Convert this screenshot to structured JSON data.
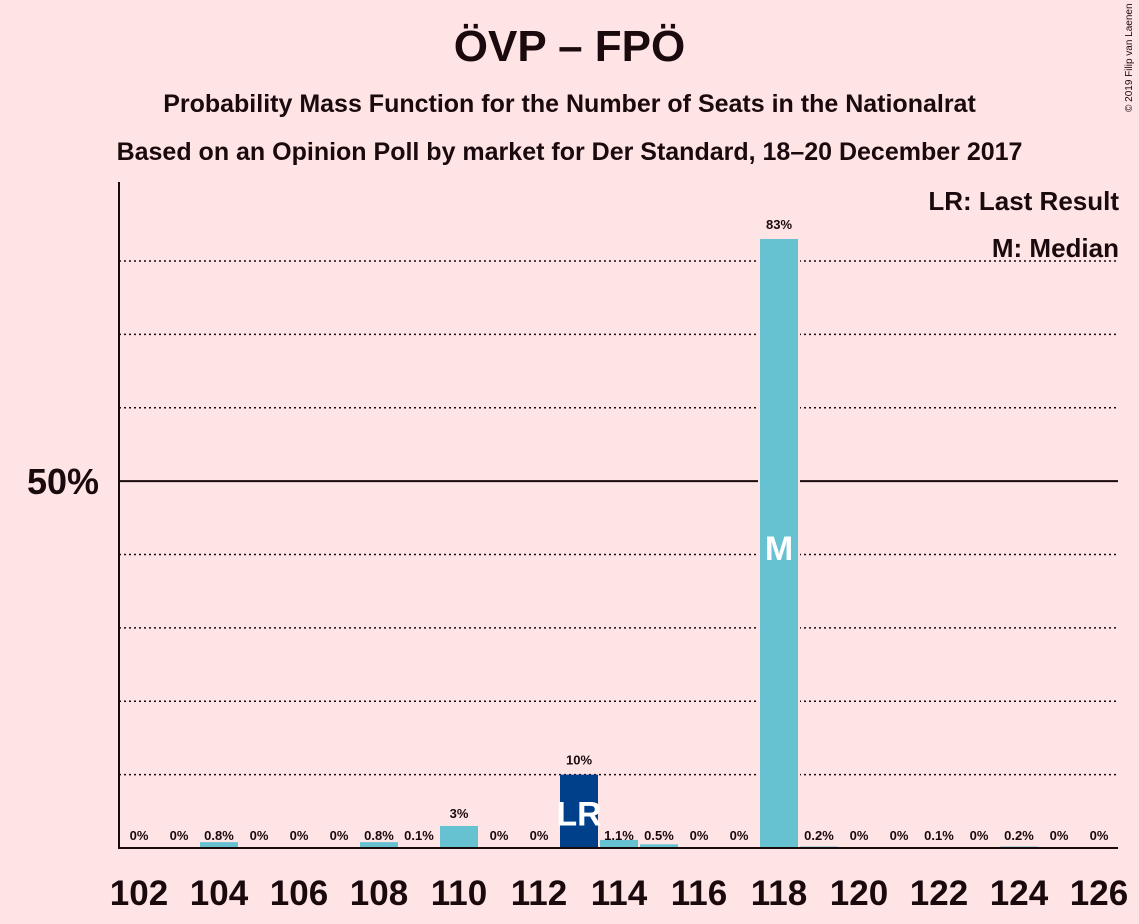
{
  "title": "ÖVP – FPÖ",
  "subtitle_1": "Probability Mass Function for the Number of Seats in the Nationalrat",
  "subtitle_2": "Based on an Opinion Poll by market for Der Standard, 18–20 December 2017",
  "copyright": "© 2019 Filip van Laenen",
  "legend": {
    "last_result": "LR: Last Result",
    "median": "M: Median"
  },
  "colors": {
    "background": "#FFE4E6",
    "bar": "#66C2D0",
    "last_result_bar": "#003F8A",
    "text": "#1a0a0d"
  },
  "chart_data": {
    "type": "bar",
    "x": [
      102,
      103,
      104,
      105,
      106,
      107,
      108,
      109,
      110,
      111,
      112,
      113,
      114,
      115,
      116,
      117,
      118,
      119,
      120,
      121,
      122,
      123,
      124,
      125,
      126
    ],
    "values": [
      0,
      0,
      0.8,
      0,
      0,
      0,
      0.8,
      0.1,
      3,
      0,
      0,
      10,
      1.1,
      0.5,
      0,
      0,
      83,
      0.2,
      0,
      0,
      0.1,
      0,
      0.2,
      0,
      0
    ],
    "value_labels": [
      "0%",
      "0%",
      "0.8%",
      "0%",
      "0%",
      "0%",
      "0.8%",
      "0.1%",
      "3%",
      "0%",
      "0%",
      "10%",
      "1.1%",
      "0.5%",
      "0%",
      "0%",
      "83%",
      "0.2%",
      "0%",
      "0%",
      "0.1%",
      "0%",
      "0.2%",
      "0%",
      "0%"
    ],
    "x_tick_labels": [
      "102",
      "104",
      "106",
      "108",
      "110",
      "112",
      "114",
      "116",
      "118",
      "120",
      "122",
      "124",
      "126"
    ],
    "y_tick_label": "50%",
    "y_tick_value": 50,
    "ylim": [
      0,
      90
    ],
    "gridlines": [
      10,
      20,
      30,
      40,
      60,
      70,
      80
    ],
    "last_result": {
      "x": 113,
      "marker": "LR"
    },
    "median": {
      "x": 118,
      "marker": "M"
    },
    "legend_position": "top-right"
  }
}
